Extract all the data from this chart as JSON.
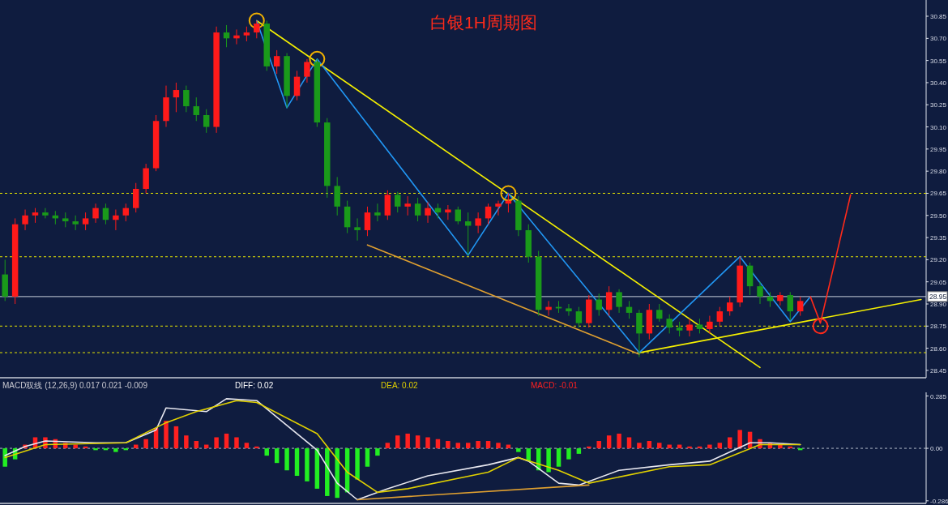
{
  "chart_data": [
    {
      "type": "candlestick",
      "title": "白银1H周期图",
      "categories": [
        null,
        null,
        null,
        null,
        null,
        null,
        null,
        null,
        null,
        null,
        null,
        null,
        null,
        null,
        null,
        null,
        null,
        null,
        null,
        null,
        null,
        null,
        null,
        null,
        null,
        null,
        null,
        null,
        null,
        null,
        null,
        null,
        null,
        null,
        null,
        null,
        null,
        null,
        null,
        null,
        null,
        null,
        null,
        null,
        null,
        null,
        null,
        null,
        null,
        null,
        null,
        null,
        null,
        null,
        null,
        null,
        null,
        null,
        null,
        null,
        null,
        null,
        null,
        null,
        null,
        null,
        null,
        null,
        null,
        null,
        null,
        null,
        null,
        null,
        null,
        null,
        null,
        null,
        null,
        null,
        null,
        null,
        null,
        null,
        null,
        null,
        null,
        null,
        null,
        null,
        null,
        null
      ],
      "ohlc": [
        [
          29.1,
          29.2,
          28.92,
          28.95
        ],
        [
          28.95,
          29.48,
          28.9,
          29.44
        ],
        [
          29.44,
          29.54,
          29.4,
          29.5
        ],
        [
          29.5,
          29.55,
          29.45,
          29.52
        ],
        [
          29.52,
          29.55,
          29.48,
          29.5
        ],
        [
          29.5,
          29.53,
          29.44,
          29.48
        ],
        [
          29.48,
          29.52,
          29.42,
          29.46
        ],
        [
          29.46,
          29.5,
          29.4,
          29.44
        ],
        [
          29.44,
          29.52,
          29.4,
          29.48
        ],
        [
          29.48,
          29.58,
          29.45,
          29.55
        ],
        [
          29.55,
          29.58,
          29.44,
          29.47
        ],
        [
          29.47,
          29.54,
          29.4,
          29.5
        ],
        [
          29.5,
          29.58,
          29.46,
          29.55
        ],
        [
          29.55,
          29.72,
          29.52,
          29.68
        ],
        [
          29.68,
          29.85,
          29.65,
          29.82
        ],
        [
          29.82,
          30.18,
          29.8,
          30.14
        ],
        [
          30.14,
          30.38,
          30.1,
          30.3
        ],
        [
          30.3,
          30.4,
          30.2,
          30.35
        ],
        [
          30.35,
          30.38,
          30.2,
          30.24
        ],
        [
          30.24,
          30.3,
          30.14,
          30.18
        ],
        [
          30.18,
          30.22,
          30.06,
          30.1
        ],
        [
          30.1,
          30.78,
          30.06,
          30.74
        ],
        [
          30.74,
          30.79,
          30.64,
          30.7
        ],
        [
          30.7,
          30.76,
          30.66,
          30.72
        ],
        [
          30.72,
          30.78,
          30.68,
          30.74
        ],
        [
          30.74,
          30.82,
          30.7,
          30.8
        ],
        [
          30.8,
          30.82,
          30.48,
          30.51
        ],
        [
          30.51,
          30.62,
          30.46,
          30.58
        ],
        [
          30.58,
          30.6,
          30.23,
          30.31
        ],
        [
          30.31,
          30.48,
          30.28,
          30.44
        ],
        [
          30.44,
          30.56,
          30.4,
          30.54
        ],
        [
          30.54,
          30.56,
          30.1,
          30.13
        ],
        [
          30.13,
          30.16,
          29.62,
          29.7
        ],
        [
          29.7,
          29.76,
          29.5,
          29.56
        ],
        [
          29.56,
          29.6,
          29.38,
          29.42
        ],
        [
          29.42,
          29.48,
          29.33,
          29.4
        ],
        [
          29.4,
          29.56,
          29.36,
          29.52
        ],
        [
          29.52,
          29.58,
          29.46,
          29.5
        ],
        [
          29.5,
          29.67,
          29.47,
          29.64
        ],
        [
          29.64,
          29.66,
          29.52,
          29.56
        ],
        [
          29.56,
          29.63,
          29.5,
          29.58
        ],
        [
          29.58,
          29.62,
          29.46,
          29.5
        ],
        [
          29.5,
          29.59,
          29.45,
          29.55
        ],
        [
          29.55,
          29.58,
          29.48,
          29.52
        ],
        [
          29.52,
          29.57,
          29.47,
          29.54
        ],
        [
          29.54,
          29.56,
          29.44,
          29.46
        ],
        [
          29.46,
          29.52,
          29.23,
          29.43
        ],
        [
          29.43,
          29.52,
          29.38,
          29.48
        ],
        [
          29.48,
          29.58,
          29.44,
          29.56
        ],
        [
          29.56,
          29.6,
          29.5,
          29.58
        ],
        [
          29.58,
          29.65,
          29.52,
          29.6
        ],
        [
          29.6,
          29.63,
          29.36,
          29.4
        ],
        [
          29.4,
          29.44,
          29.18,
          29.22
        ],
        [
          29.22,
          29.26,
          28.82,
          28.86
        ],
        [
          28.86,
          28.92,
          28.82,
          28.88
        ],
        [
          28.88,
          28.92,
          28.84,
          28.87
        ],
        [
          28.87,
          28.9,
          28.82,
          28.85
        ],
        [
          28.85,
          28.88,
          28.74,
          28.77
        ],
        [
          28.77,
          28.96,
          28.74,
          28.93
        ],
        [
          28.93,
          28.97,
          28.82,
          28.86
        ],
        [
          28.86,
          29.02,
          28.82,
          28.98
        ],
        [
          28.98,
          29.0,
          28.84,
          28.88
        ],
        [
          28.88,
          28.92,
          28.8,
          28.84
        ],
        [
          28.84,
          28.86,
          28.54,
          28.7
        ],
        [
          28.7,
          28.9,
          28.66,
          28.86
        ],
        [
          28.86,
          28.9,
          28.78,
          28.8
        ],
        [
          28.8,
          28.83,
          28.7,
          28.74
        ],
        [
          28.74,
          28.78,
          28.68,
          28.72
        ],
        [
          28.72,
          28.8,
          28.68,
          28.76
        ],
        [
          28.76,
          28.8,
          28.7,
          28.73
        ],
        [
          28.73,
          28.82,
          28.7,
          28.78
        ],
        [
          28.78,
          28.88,
          28.75,
          28.85
        ],
        [
          28.85,
          28.95,
          28.82,
          28.91
        ],
        [
          28.91,
          29.22,
          28.88,
          29.16
        ],
        [
          29.16,
          29.18,
          28.96,
          29.02
        ],
        [
          29.02,
          29.05,
          28.9,
          28.95
        ],
        [
          28.95,
          28.98,
          28.88,
          28.92
        ],
        [
          28.92,
          28.98,
          28.89,
          28.96
        ],
        [
          28.96,
          28.98,
          28.79,
          28.85
        ],
        [
          28.85,
          28.95,
          28.82,
          28.92
        ],
        null,
        null,
        null,
        null,
        null,
        null,
        null,
        null,
        null,
        null,
        null,
        null
      ],
      "ylim": [
        28.4,
        30.96
      ],
      "yticks": [
        30.85,
        {
          "value": 30.7,
          "label": "30.70"
        },
        30.55,
        {
          "value": 30.4,
          "label": "30.40"
        },
        30.25,
        {
          "value": 30.1,
          "label": "30.10"
        },
        29.95,
        {
          "value": 29.8,
          "label": "29.80"
        },
        29.65,
        {
          "value": 29.5,
          "label": "29.50"
        },
        29.35,
        {
          "value": 29.2,
          "label": "29.20"
        },
        29.05,
        {
          "value": 28.9,
          "label": "28.90"
        },
        28.75,
        {
          "value": 28.6,
          "label": "28.60"
        },
        28.45
      ],
      "ref_lines": [
        {
          "axis": "y",
          "value": 28.95,
          "label": "28.95",
          "color": "#c8cfdc",
          "line_style": "solid"
        },
        {
          "axis": "y",
          "value": 29.65,
          "label": null,
          "color": "#e8e800",
          "line_style": "dotted"
        },
        {
          "axis": "y",
          "value": 29.22,
          "label": null,
          "color": "#e8e800",
          "line_style": "dotted"
        },
        {
          "axis": "y",
          "value": 28.75,
          "label": null,
          "color": "#e8e800",
          "line_style": "dotted"
        },
        {
          "axis": "y",
          "value": 28.57,
          "label": null,
          "color": "#e8e800",
          "line_style": "dotted"
        }
      ],
      "series": [
        {
          "type": "line",
          "color": "#f5f000",
          "values": [
            null,
            null,
            null,
            null,
            null,
            null,
            null,
            null,
            null,
            null,
            null,
            null,
            null,
            null,
            null,
            null,
            null,
            null,
            null,
            null,
            null,
            null,
            null,
            null,
            null,
            30.82,
            null,
            null,
            null,
            null,
            null,
            null,
            null,
            null,
            null,
            null,
            null,
            null,
            null,
            null,
            null,
            null,
            null,
            null,
            null,
            null,
            null,
            null,
            null,
            null,
            null,
            null,
            null,
            null,
            null,
            null,
            null,
            null,
            null,
            null,
            null,
            null,
            null,
            null,
            null,
            null,
            null,
            null,
            null,
            null,
            null,
            null,
            null,
            null,
            null,
            28.47,
            null,
            null,
            null,
            null,
            null,
            null,
            null,
            null,
            null,
            null,
            null,
            null,
            null,
            null,
            null,
            null
          ]
        },
        {
          "type": "line",
          "color": "#f5f000",
          "values": [
            null,
            null,
            null,
            null,
            null,
            null,
            null,
            null,
            null,
            null,
            null,
            null,
            null,
            null,
            null,
            null,
            null,
            null,
            null,
            null,
            null,
            null,
            null,
            null,
            null,
            null,
            null,
            null,
            null,
            null,
            null,
            null,
            null,
            null,
            null,
            null,
            null,
            null,
            null,
            null,
            null,
            null,
            null,
            null,
            null,
            null,
            null,
            null,
            null,
            null,
            null,
            null,
            null,
            null,
            null,
            null,
            null,
            null,
            null,
            null,
            null,
            null,
            null,
            28.57,
            null,
            null,
            null,
            null,
            null,
            null,
            null,
            null,
            null,
            null,
            null,
            null,
            null,
            null,
            null,
            null,
            null,
            null,
            null,
            null,
            null,
            null,
            null,
            null,
            null,
            null,
            null,
            28.93
          ]
        },
        {
          "type": "line",
          "color": "#e0a030",
          "values": [
            null,
            null,
            null,
            null,
            null,
            null,
            null,
            null,
            null,
            null,
            null,
            null,
            null,
            null,
            null,
            null,
            null,
            null,
            null,
            null,
            null,
            null,
            null,
            null,
            null,
            null,
            null,
            null,
            null,
            null,
            null,
            null,
            null,
            null,
            null,
            null,
            29.3,
            null,
            null,
            null,
            null,
            null,
            null,
            null,
            null,
            null,
            null,
            null,
            null,
            null,
            null,
            null,
            null,
            null,
            null,
            null,
            null,
            null,
            null,
            null,
            null,
            null,
            null,
            28.56,
            null,
            null,
            null,
            null,
            null,
            null,
            null,
            null,
            null,
            null,
            null,
            null,
            null,
            null,
            null,
            null,
            null,
            null,
            null,
            null,
            null,
            null,
            null,
            null,
            null,
            null,
            null,
            null
          ]
        },
        {
          "type": "line",
          "color": "#2196f3",
          "values": [
            null,
            null,
            null,
            null,
            null,
            null,
            null,
            null,
            null,
            null,
            null,
            null,
            null,
            null,
            null,
            null,
            null,
            null,
            null,
            null,
            null,
            null,
            null,
            null,
            null,
            30.82,
            null,
            null,
            30.23,
            null,
            null,
            30.56,
            null,
            null,
            null,
            null,
            null,
            null,
            null,
            null,
            null,
            null,
            null,
            null,
            null,
            null,
            29.23,
            null,
            null,
            null,
            29.65,
            null,
            null,
            null,
            null,
            null,
            null,
            null,
            null,
            null,
            null,
            null,
            null,
            28.57,
            null,
            null,
            null,
            null,
            null,
            null,
            null,
            null,
            null,
            29.22,
            null,
            null,
            null,
            null,
            28.78,
            null,
            28.95,
            null,
            null,
            null,
            null,
            null,
            null,
            null,
            null,
            null,
            null,
            null
          ]
        },
        {
          "type": "line",
          "color": "#ff2a1a",
          "values": [
            null,
            null,
            null,
            null,
            null,
            null,
            null,
            null,
            null,
            null,
            null,
            null,
            null,
            null,
            null,
            null,
            null,
            null,
            null,
            null,
            null,
            null,
            null,
            null,
            null,
            null,
            null,
            null,
            null,
            null,
            null,
            null,
            null,
            null,
            null,
            null,
            null,
            null,
            null,
            null,
            null,
            null,
            null,
            null,
            null,
            null,
            null,
            null,
            null,
            null,
            null,
            null,
            null,
            null,
            null,
            null,
            null,
            null,
            null,
            null,
            null,
            null,
            null,
            null,
            null,
            null,
            null,
            null,
            null,
            null,
            null,
            null,
            null,
            null,
            null,
            null,
            null,
            null,
            null,
            null,
            28.95,
            28.77,
            null,
            null,
            29.64,
            null,
            null,
            null,
            null,
            null,
            null,
            null
          ]
        },
        {
          "type": "scatter",
          "marker": "circle",
          "color": "#f0b000",
          "values": [
            null,
            null,
            null,
            null,
            null,
            null,
            null,
            null,
            null,
            null,
            null,
            null,
            null,
            null,
            null,
            null,
            null,
            null,
            null,
            null,
            null,
            null,
            null,
            null,
            null,
            30.82,
            null,
            null,
            null,
            null,
            null,
            30.56,
            null,
            null,
            null,
            null,
            null,
            null,
            null,
            null,
            null,
            null,
            null,
            null,
            null,
            null,
            null,
            null,
            null,
            null,
            29.65,
            null,
            null,
            null,
            null,
            null,
            null,
            null,
            null,
            null,
            null,
            null,
            null,
            null,
            null,
            null,
            null,
            null,
            null,
            null,
            null,
            null,
            null,
            null,
            null,
            null,
            null,
            null,
            null,
            null,
            null,
            null,
            null,
            null,
            null,
            null,
            null,
            null,
            null,
            null,
            null,
            null
          ]
        },
        {
          "type": "scatter",
          "marker": "circle",
          "color": "#ff2a1a",
          "values": [
            null,
            null,
            null,
            null,
            null,
            null,
            null,
            null,
            null,
            null,
            null,
            null,
            null,
            null,
            null,
            null,
            null,
            null,
            null,
            null,
            null,
            null,
            null,
            null,
            null,
            null,
            null,
            null,
            null,
            null,
            null,
            null,
            null,
            null,
            null,
            null,
            null,
            null,
            null,
            null,
            null,
            null,
            null,
            null,
            null,
            null,
            null,
            null,
            null,
            null,
            null,
            null,
            null,
            null,
            null,
            null,
            null,
            null,
            null,
            null,
            null,
            null,
            null,
            null,
            null,
            null,
            null,
            null,
            null,
            null,
            null,
            null,
            null,
            null,
            null,
            null,
            null,
            null,
            null,
            null,
            null,
            28.75,
            null,
            null,
            null,
            null,
            null,
            null,
            null,
            null,
            null,
            null
          ]
        }
      ]
    },
    {
      "type": "bar",
      "categories": [
        null,
        null,
        null,
        null,
        null,
        null,
        null,
        null,
        null,
        null,
        null,
        null,
        null,
        null,
        null,
        null,
        null,
        null,
        null,
        null,
        null,
        null,
        null,
        null,
        null,
        null,
        null,
        null,
        null,
        null,
        null,
        null,
        null,
        null,
        null,
        null,
        null,
        null,
        null,
        null,
        null,
        null,
        null,
        null,
        null,
        null,
        null,
        null,
        null,
        null,
        null,
        null,
        null,
        null,
        null,
        null,
        null,
        null,
        null,
        null,
        null,
        null,
        null,
        null,
        null,
        null,
        null,
        null,
        null,
        null,
        null,
        null,
        null,
        null,
        null,
        null,
        null,
        null,
        null,
        null,
        null,
        null,
        null,
        null,
        null,
        null,
        null,
        null,
        null,
        null,
        null,
        null
      ],
      "ylim": [
        -0.3,
        0.305
      ],
      "yticks": [
        0.285,
        {
          "value": 0,
          "label": "0.00"
        },
        -0.286
      ],
      "ref_lines": [
        {
          "axis": "y",
          "value": 0,
          "label": null,
          "color": "#b0b8c8",
          "line_style": "dotted"
        }
      ],
      "annotations": [
        "MACD双线 (12,26,9) 0.017 0.021 -0.009",
        "DIFF:   0.02",
        "DEA:   0.02",
        "MACD:   -0.01"
      ],
      "series": [
        {
          "type": "bar",
          "values": [
            -0.1,
            -0.06,
            0.02,
            0.06,
            0.06,
            0.05,
            0.03,
            0.02,
            0.01,
            -0.01,
            -0.01,
            -0.02,
            -0.01,
            0.02,
            0.05,
            0.11,
            0.15,
            0.12,
            0.07,
            0.04,
            0.02,
            0.06,
            0.08,
            0.06,
            0.03,
            0.01,
            -0.04,
            -0.08,
            -0.12,
            -0.15,
            -0.18,
            -0.22,
            -0.26,
            -0.27,
            -0.24,
            -0.17,
            -0.1,
            -0.04,
            0.03,
            0.07,
            0.08,
            0.07,
            0.06,
            0.05,
            0.04,
            0.03,
            0.03,
            0.04,
            0.04,
            0.03,
            0.02,
            -0.02,
            -0.07,
            -0.12,
            -0.13,
            -0.1,
            -0.06,
            -0.03,
            0.01,
            0.04,
            0.07,
            0.08,
            0.06,
            0.03,
            0.04,
            0.03,
            0.02,
            0.02,
            0.01,
            0.01,
            0.02,
            0.03,
            0.06,
            0.1,
            0.09,
            0.05,
            0.03,
            0.02,
            0.01,
            -0.01,
            null,
            null,
            null,
            null,
            null,
            null,
            null,
            null,
            null,
            null,
            null,
            null
          ],
          "colors": [
            "#22ee22",
            "#22ee22",
            "#ff2020",
            "#ff2020",
            "#ff2020",
            "#ff2020",
            "#ff2020",
            "#ff2020",
            "#ff2020",
            "#22ee22",
            "#22ee22",
            "#22ee22",
            "#22ee22",
            "#ff2020",
            "#ff2020",
            "#ff2020",
            "#ff2020",
            "#ff2020",
            "#ff2020",
            "#ff2020",
            "#ff2020",
            "#ff2020",
            "#ff2020",
            "#ff2020",
            "#ff2020",
            "#ff2020",
            "#22ee22",
            "#22ee22",
            "#22ee22",
            "#22ee22",
            "#22ee22",
            "#22ee22",
            "#22ee22",
            "#22ee22",
            "#22ee22",
            "#22ee22",
            "#22ee22",
            "#22ee22",
            "#ff2020",
            "#ff2020",
            "#ff2020",
            "#ff2020",
            "#ff2020",
            "#ff2020",
            "#ff2020",
            "#ff2020",
            "#ff2020",
            "#ff2020",
            "#ff2020",
            "#ff2020",
            "#ff2020",
            "#22ee22",
            "#22ee22",
            "#22ee22",
            "#22ee22",
            "#22ee22",
            "#22ee22",
            "#22ee22",
            "#ff2020",
            "#ff2020",
            "#ff2020",
            "#ff2020",
            "#ff2020",
            "#ff2020",
            "#ff2020",
            "#ff2020",
            "#ff2020",
            "#ff2020",
            "#ff2020",
            "#ff2020",
            "#ff2020",
            "#ff2020",
            "#ff2020",
            "#ff2020",
            "#ff2020",
            "#ff2020",
            "#ff2020",
            "#ff2020",
            "#ff2020",
            "#22ee22",
            null,
            null,
            null,
            null,
            null,
            null,
            null,
            null,
            null,
            null,
            null,
            null
          ]
        },
        {
          "type": "line",
          "color": "#e8e8f0",
          "values": [
            -0.04,
            null,
            0.01,
            null,
            0.04,
            null,
            null,
            null,
            null,
            0.03,
            null,
            null,
            0.03,
            null,
            null,
            0.1,
            0.22,
            null,
            null,
            null,
            0.2,
            null,
            0.27,
            null,
            null,
            0.26,
            null,
            0.17,
            null,
            null,
            null,
            -0.01,
            null,
            -0.19,
            null,
            -0.28,
            null,
            null,
            -0.22,
            null,
            null,
            null,
            -0.15,
            null,
            null,
            null,
            null,
            null,
            -0.09,
            null,
            null,
            -0.05,
            -0.07,
            null,
            null,
            -0.19,
            null,
            -0.2,
            null,
            null,
            null,
            -0.12,
            null,
            null,
            null,
            null,
            -0.09,
            null,
            null,
            null,
            -0.07,
            null,
            null,
            null,
            0.03,
            null,
            0.03,
            null,
            null,
            0.02,
            null,
            null,
            null,
            null,
            null,
            null,
            null,
            null,
            null,
            null,
            null,
            null
          ]
        },
        {
          "type": "line",
          "color": "#e0d000",
          "values": [
            -0.05,
            null,
            null,
            null,
            0.02,
            null,
            null,
            null,
            null,
            null,
            null,
            null,
            0.03,
            null,
            null,
            null,
            0.14,
            null,
            null,
            0.2,
            null,
            null,
            null,
            0.26,
            null,
            0.25,
            null,
            null,
            null,
            null,
            null,
            0.08,
            null,
            null,
            -0.13,
            null,
            null,
            -0.24,
            null,
            null,
            -0.22,
            null,
            null,
            null,
            null,
            null,
            null,
            null,
            -0.13,
            null,
            null,
            -0.05,
            null,
            null,
            null,
            -0.12,
            null,
            null,
            -0.19,
            null,
            null,
            null,
            null,
            null,
            null,
            null,
            -0.1,
            null,
            null,
            null,
            -0.09,
            null,
            null,
            null,
            null,
            0.02,
            null,
            null,
            null,
            0.02,
            null,
            null,
            null,
            null,
            null,
            null,
            null,
            null,
            null,
            null,
            null,
            null
          ]
        },
        {
          "type": "line",
          "color": "#e0a030",
          "values": [
            null,
            null,
            null,
            null,
            null,
            null,
            null,
            null,
            null,
            null,
            null,
            null,
            null,
            null,
            null,
            null,
            null,
            null,
            null,
            null,
            null,
            null,
            null,
            null,
            null,
            null,
            null,
            null,
            null,
            null,
            null,
            null,
            null,
            null,
            null,
            -0.28,
            null,
            null,
            null,
            null,
            null,
            null,
            null,
            null,
            null,
            null,
            null,
            null,
            null,
            null,
            null,
            null,
            null,
            null,
            null,
            null,
            null,
            null,
            -0.2,
            null,
            null,
            null,
            null,
            null,
            null,
            null,
            null,
            null,
            null,
            null,
            null,
            null,
            null,
            null,
            null,
            null,
            null,
            null,
            null,
            null,
            null,
            null,
            null,
            null,
            null,
            null,
            null,
            null,
            null,
            null,
            null,
            null
          ]
        }
      ]
    }
  ]
}
